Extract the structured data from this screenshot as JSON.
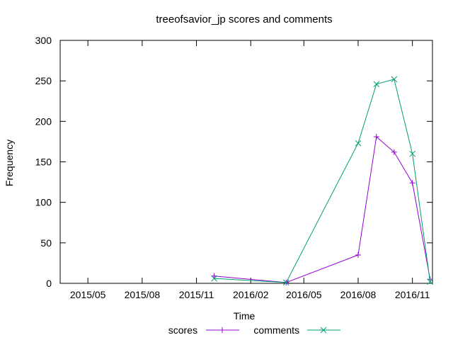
{
  "chart_data": {
    "type": "line",
    "title": "treeofsavior_jp scores and comments",
    "xlabel": "Time",
    "ylabel": "Frequency",
    "x_ticks": [
      "2015/05",
      "2015/08",
      "2015/11",
      "2016/02",
      "2016/05",
      "2016/08",
      "2016/11"
    ],
    "y_ticks": [
      "0",
      "50",
      "100",
      "150",
      "200",
      "250",
      "300"
    ],
    "xlim": [
      "2015-03-15",
      "2016-12-05"
    ],
    "ylim": [
      0,
      300
    ],
    "grid": false,
    "legend_position": "bottom",
    "series": [
      {
        "name": "scores",
        "color": "#9400d3",
        "marker": "plus",
        "points": [
          {
            "x": "2015-12-01",
            "y": 9
          },
          {
            "x": "2016-04-01",
            "y": 1
          },
          {
            "x": "2016-08-01",
            "y": 35
          },
          {
            "x": "2016-09-01",
            "y": 181
          },
          {
            "x": "2016-10-01",
            "y": 162
          },
          {
            "x": "2016-11-01",
            "y": 124
          },
          {
            "x": "2016-12-01",
            "y": 5
          }
        ]
      },
      {
        "name": "comments",
        "color": "#009e73",
        "marker": "cross",
        "points": [
          {
            "x": "2015-12-01",
            "y": 6
          },
          {
            "x": "2016-04-01",
            "y": 1
          },
          {
            "x": "2016-08-01",
            "y": 173
          },
          {
            "x": "2016-09-01",
            "y": 246
          },
          {
            "x": "2016-10-01",
            "y": 252
          },
          {
            "x": "2016-11-01",
            "y": 160
          },
          {
            "x": "2016-12-01",
            "y": 2
          }
        ]
      }
    ]
  }
}
